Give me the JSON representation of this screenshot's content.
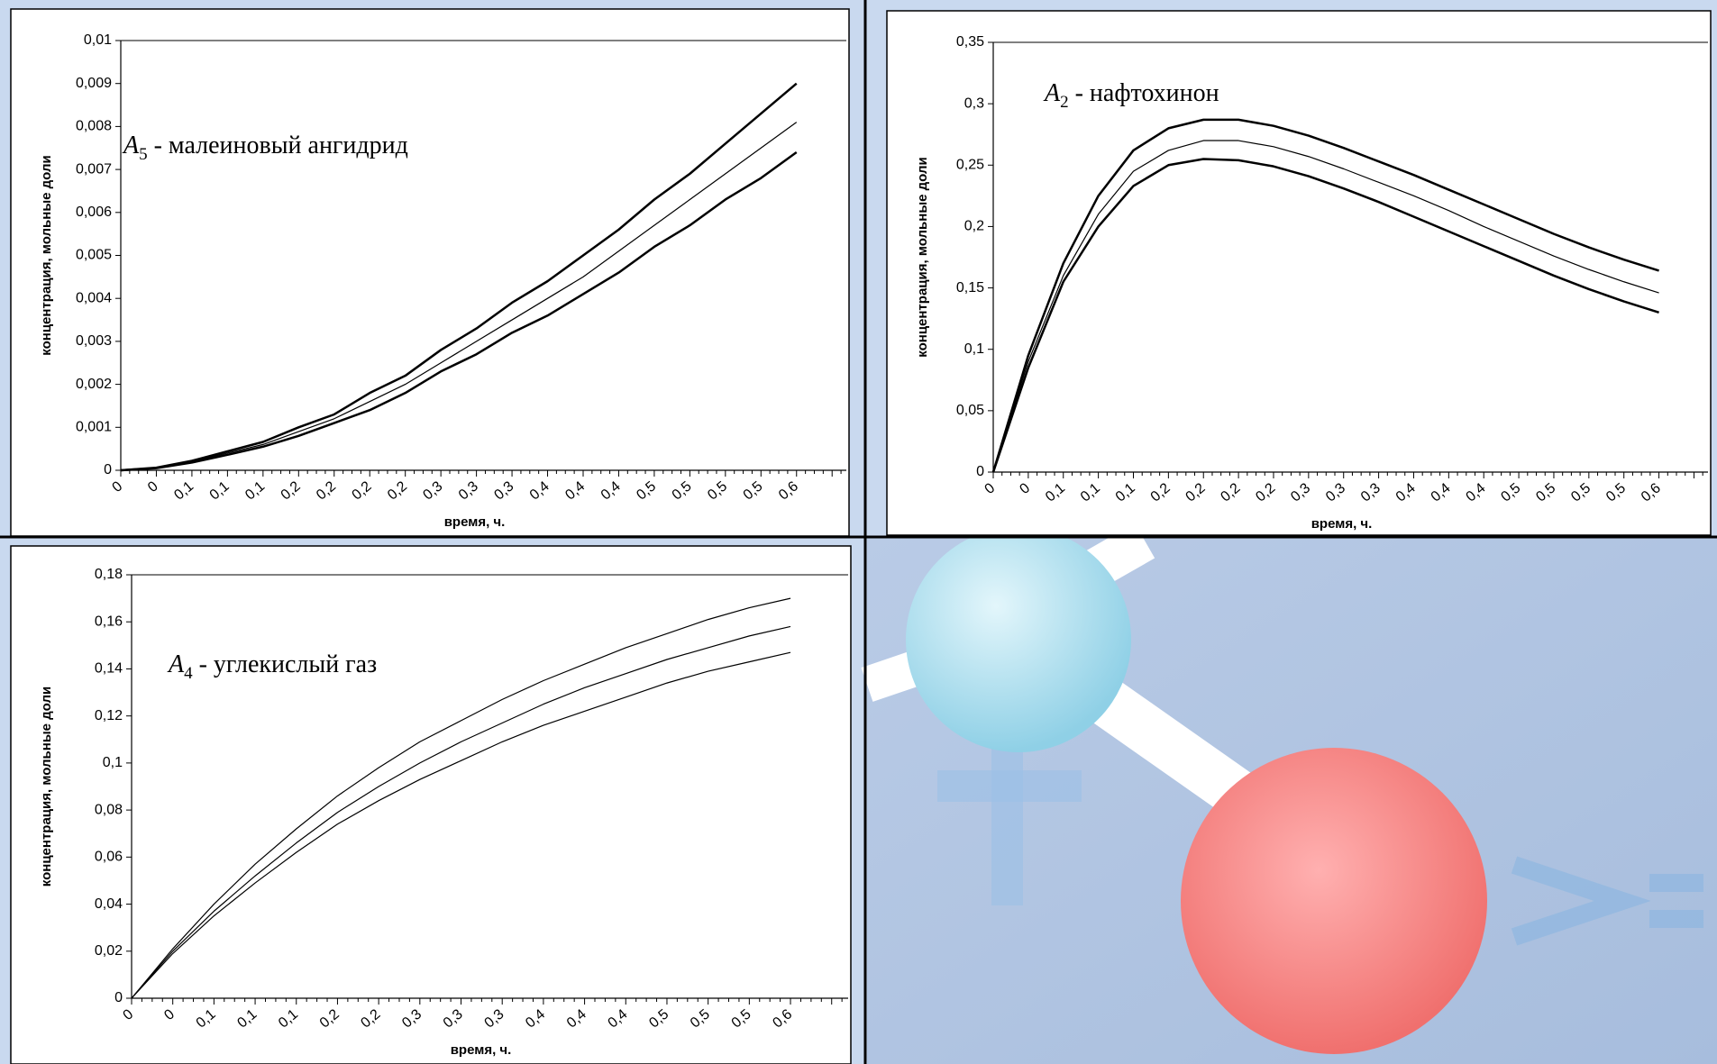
{
  "chart_data": [
    {
      "type": "line",
      "annotation": {
        "symbol": "A",
        "subscript": "5",
        "text": " - малеиновый ангидрид"
      },
      "x_label": "время, ч.",
      "y_label": "концентрация, мольные доли",
      "categories": [
        "0",
        "0",
        "0,1",
        "0,1",
        "0,1",
        "0,2",
        "0,2",
        "0,2",
        "0,2",
        "0,3",
        "0,3",
        "0,3",
        "0,4",
        "0,4",
        "0,4",
        "0,5",
        "0,5",
        "0,5",
        "0,5",
        "0,6"
      ],
      "ylim": [
        0,
        0.01
      ],
      "yticks": [
        0,
        {
          "value": 0.001,
          "label": "0,001"
        },
        {
          "value": 0.002,
          "label": "0,002"
        },
        {
          "value": 0.003,
          "label": "0,003"
        },
        {
          "value": 0.004,
          "label": "0,004"
        },
        {
          "value": 0.005,
          "label": "0,005"
        },
        {
          "value": 0.006,
          "label": "0,006"
        },
        {
          "value": 0.007,
          "label": "0,007"
        },
        {
          "value": 0.008,
          "label": "0,008"
        },
        {
          "value": 0.009,
          "label": "0,009"
        },
        {
          "value": 0.01,
          "label": "0,01"
        }
      ],
      "series": [
        {
          "color": "#000000",
          "line_width": 2.5,
          "values": [
            0,
            6e-05,
            0.00022,
            0.00044,
            0.00066,
            0.001,
            0.0013,
            0.0018,
            0.0022,
            0.0028,
            0.0033,
            0.0039,
            0.0044,
            0.005,
            0.0056,
            0.0063,
            0.0069,
            0.0076,
            0.0083,
            0.009
          ]
        },
        {
          "color": "#000000",
          "line_width": 1.2,
          "values": [
            0,
            5e-05,
            0.0002,
            0.0004,
            0.0006,
            0.0009,
            0.0012,
            0.0016,
            0.002,
            0.0025,
            0.003,
            0.0035,
            0.004,
            0.0045,
            0.0051,
            0.0057,
            0.0063,
            0.0069,
            0.0075,
            0.0081
          ]
        },
        {
          "color": "#000000",
          "line_width": 2.5,
          "values": [
            0,
            5e-05,
            0.00018,
            0.00036,
            0.00055,
            0.0008,
            0.0011,
            0.0014,
            0.0018,
            0.0023,
            0.0027,
            0.0032,
            0.0036,
            0.0041,
            0.0046,
            0.0052,
            0.0057,
            0.0063,
            0.0068,
            0.0074
          ]
        }
      ]
    },
    {
      "type": "line",
      "annotation": {
        "symbol": "A",
        "subscript": "2",
        "text": " - нафтохинон"
      },
      "x_label": "время, ч.",
      "y_label": "концентрация, мольные доли",
      "categories": [
        "0",
        "0",
        "0,1",
        "0,1",
        "0,1",
        "0,2",
        "0,2",
        "0,2",
        "0,2",
        "0,3",
        "0,3",
        "0,3",
        "0,4",
        "0,4",
        "0,4",
        "0,5",
        "0,5",
        "0,5",
        "0,5",
        "0,6"
      ],
      "ylim": [
        0,
        0.35
      ],
      "yticks": [
        0,
        {
          "value": 0.05,
          "label": "0,05"
        },
        {
          "value": 0.1,
          "label": "0,1"
        },
        {
          "value": 0.15,
          "label": "0,15"
        },
        {
          "value": 0.2,
          "label": "0,2"
        },
        {
          "value": 0.25,
          "label": "0,25"
        },
        {
          "value": 0.3,
          "label": "0,3"
        },
        {
          "value": 0.35,
          "label": "0,35"
        }
      ],
      "series": [
        {
          "color": "#000000",
          "line_width": 2.5,
          "values": [
            0,
            0.095,
            0.17,
            0.225,
            0.262,
            0.28,
            0.287,
            0.287,
            0.282,
            0.274,
            0.264,
            0.253,
            0.242,
            0.23,
            0.218,
            0.206,
            0.194,
            0.183,
            0.173,
            0.164
          ]
        },
        {
          "color": "#000000",
          "line_width": 1.2,
          "values": [
            0,
            0.09,
            0.16,
            0.21,
            0.245,
            0.262,
            0.27,
            0.27,
            0.265,
            0.257,
            0.247,
            0.236,
            0.225,
            0.213,
            0.2,
            0.188,
            0.176,
            0.165,
            0.155,
            0.146
          ]
        },
        {
          "color": "#000000",
          "line_width": 2.5,
          "values": [
            0,
            0.085,
            0.155,
            0.2,
            0.233,
            0.25,
            0.255,
            0.254,
            0.249,
            0.241,
            0.231,
            0.22,
            0.208,
            0.196,
            0.184,
            0.172,
            0.16,
            0.149,
            0.139,
            0.13
          ]
        }
      ]
    },
    {
      "type": "line",
      "annotation": {
        "symbol": "A",
        "subscript": "4",
        "text": " - углекислый газ"
      },
      "x_label": "время, ч.",
      "y_label": "концентрация, мольные доли",
      "categories": [
        "0",
        "0",
        "0,1",
        "0,1",
        "0,1",
        "0,2",
        "0,2",
        "0,3",
        "0,3",
        "0,3",
        "0,4",
        "0,4",
        "0,4",
        "0,5",
        "0,5",
        "0,5",
        "0,6"
      ],
      "ylim": [
        0,
        0.18
      ],
      "yticks": [
        0,
        {
          "value": 0.02,
          "label": "0,02"
        },
        {
          "value": 0.04,
          "label": "0,04"
        },
        {
          "value": 0.06,
          "label": "0,06"
        },
        {
          "value": 0.08,
          "label": "0,08"
        },
        {
          "value": 0.1,
          "label": "0,1"
        },
        {
          "value": 0.12,
          "label": "0,12"
        },
        {
          "value": 0.14,
          "label": "0,14"
        },
        {
          "value": 0.16,
          "label": "0,16"
        },
        {
          "value": 0.18,
          "label": "0,18"
        }
      ],
      "series": [
        {
          "color": "#000000",
          "line_width": 1.2,
          "values": [
            0,
            0.021,
            0.04,
            0.057,
            0.072,
            0.086,
            0.098,
            0.109,
            0.118,
            0.127,
            0.135,
            0.142,
            0.149,
            0.155,
            0.161,
            0.166,
            0.17
          ]
        },
        {
          "color": "#000000",
          "line_width": 1.2,
          "values": [
            0,
            0.02,
            0.037,
            0.052,
            0.066,
            0.079,
            0.09,
            0.1,
            0.109,
            0.117,
            0.125,
            0.132,
            0.138,
            0.144,
            0.149,
            0.154,
            0.158
          ]
        },
        {
          "color": "#000000",
          "line_width": 1.2,
          "values": [
            0,
            0.019,
            0.035,
            0.049,
            0.062,
            0.074,
            0.084,
            0.093,
            0.101,
            0.109,
            0.116,
            0.122,
            0.128,
            0.134,
            0.139,
            0.143,
            0.147
          ]
        }
      ]
    }
  ]
}
